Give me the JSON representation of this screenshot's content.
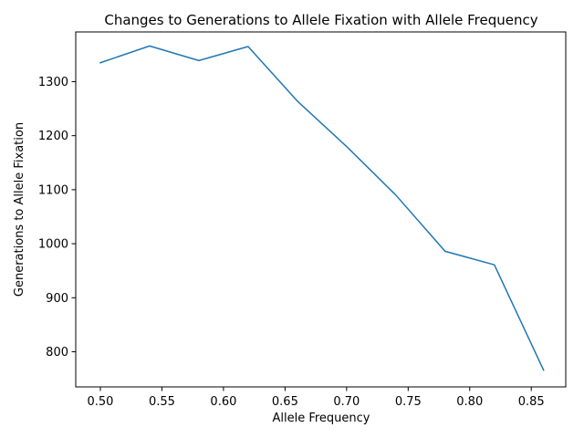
{
  "chart_data": {
    "type": "line",
    "title": "Changes to Generations to Allele Fixation with Allele Frequency",
    "xlabel": "Allele Frequency",
    "ylabel": "Generations to Allele Fixation",
    "xlim": [
      0.48,
      0.878
    ],
    "ylim": [
      735,
      1392
    ],
    "x_ticks": [
      0.5,
      0.55,
      0.6,
      0.65,
      0.7,
      0.75,
      0.8,
      0.85
    ],
    "x_tick_labels": [
      "0.50",
      "0.55",
      "0.60",
      "0.65",
      "0.70",
      "0.75",
      "0.80",
      "0.85"
    ],
    "y_ticks": [
      800,
      900,
      1000,
      1100,
      1200,
      1300
    ],
    "y_tick_labels": [
      "800",
      "900",
      "1000",
      "1100",
      "1200",
      "1300"
    ],
    "grid": false,
    "series": [
      {
        "color": "#1f77b4",
        "x": [
          0.5,
          0.54,
          0.58,
          0.62,
          0.66,
          0.7,
          0.74,
          0.78,
          0.82,
          0.86
        ],
        "values": [
          1335,
          1366,
          1339,
          1365,
          1264,
          1180,
          1090,
          986,
          961,
          766
        ]
      }
    ]
  }
}
